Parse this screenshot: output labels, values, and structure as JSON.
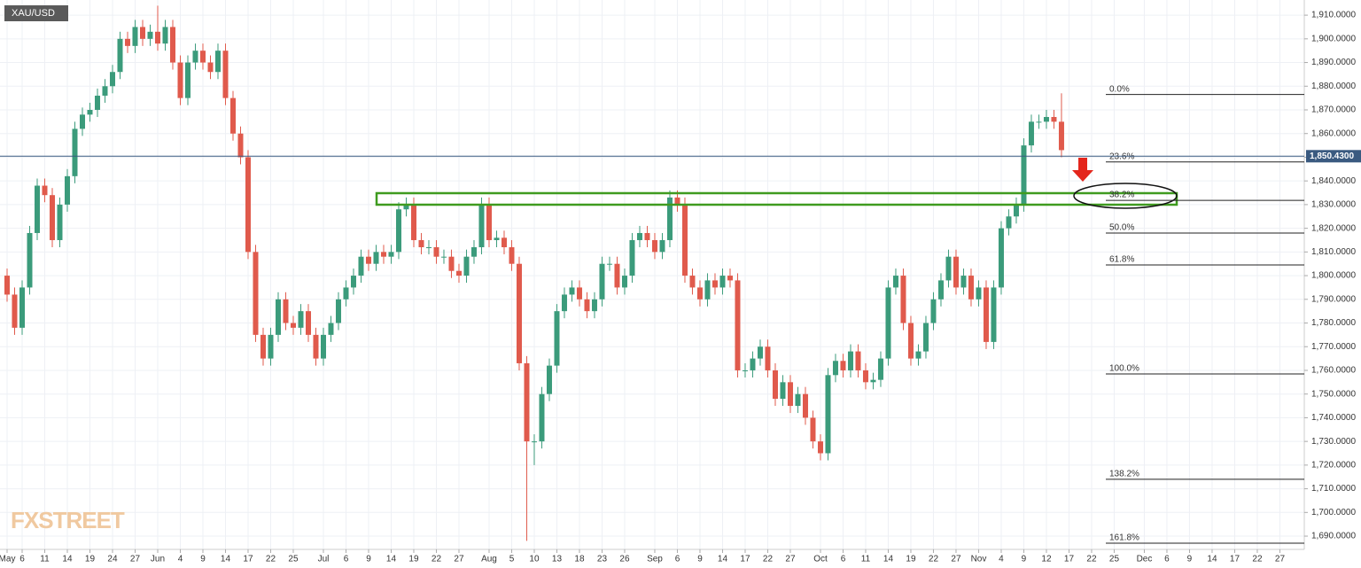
{
  "chart_data": {
    "type": "candlestick",
    "title": "XAU/USD",
    "watermark": "FXSTREET",
    "up_color": "#3b9b7b",
    "down_color": "#e05a4c",
    "grid": true,
    "ylim": [
      1684.4,
      1916.4
    ],
    "yticks": [
      {
        "value": 1690,
        "label": "1,690.0000"
      },
      {
        "value": 1700,
        "label": "1,700.0000"
      },
      {
        "value": 1710,
        "label": "1,710.0000"
      },
      {
        "value": 1720,
        "label": "1,720.0000"
      },
      {
        "value": 1730,
        "label": "1,730.0000"
      },
      {
        "value": 1740,
        "label": "1,740.0000"
      },
      {
        "value": 1750,
        "label": "1,750.0000"
      },
      {
        "value": 1760,
        "label": "1,760.0000"
      },
      {
        "value": 1770,
        "label": "1,770.0000"
      },
      {
        "value": 1780,
        "label": "1,780.0000"
      },
      {
        "value": 1790,
        "label": "1,790.0000"
      },
      {
        "value": 1800,
        "label": "1,800.0000"
      },
      {
        "value": 1810,
        "label": "1,810.0000"
      },
      {
        "value": 1820,
        "label": "1,820.0000"
      },
      {
        "value": 1830,
        "label": "1,830.0000"
      },
      {
        "value": 1840,
        "label": "1,840.0000"
      },
      {
        "value": 1850,
        "label": "1,850.0000"
      },
      {
        "value": 1860,
        "label": "1,860.0000"
      },
      {
        "value": 1870,
        "label": "1,870.0000"
      },
      {
        "value": 1880,
        "label": "1,880.0000"
      },
      {
        "value": 1890,
        "label": "1,890.0000"
      },
      {
        "value": 1900,
        "label": "1,900.0000"
      },
      {
        "value": 1910,
        "label": "1,910.0000"
      }
    ],
    "xlim": [
      -0.94,
      172.24
    ],
    "xticks": [
      {
        "value": 0,
        "label": "May"
      },
      {
        "value": 2,
        "label": "6"
      },
      {
        "value": 5,
        "label": "11"
      },
      {
        "value": 8,
        "label": "14"
      },
      {
        "value": 11,
        "label": "19"
      },
      {
        "value": 14,
        "label": "24"
      },
      {
        "value": 17,
        "label": "27"
      },
      {
        "value": 20,
        "label": "Jun"
      },
      {
        "value": 23,
        "label": "4"
      },
      {
        "value": 26,
        "label": "9"
      },
      {
        "value": 29,
        "label": "14"
      },
      {
        "value": 32,
        "label": "17"
      },
      {
        "value": 35,
        "label": "22"
      },
      {
        "value": 38,
        "label": "25"
      },
      {
        "value": 42,
        "label": "Jul"
      },
      {
        "value": 45,
        "label": "6"
      },
      {
        "value": 48,
        "label": "9"
      },
      {
        "value": 51,
        "label": "14"
      },
      {
        "value": 54,
        "label": "19"
      },
      {
        "value": 57,
        "label": "22"
      },
      {
        "value": 60,
        "label": "27"
      },
      {
        "value": 64,
        "label": "Aug"
      },
      {
        "value": 67,
        "label": "5"
      },
      {
        "value": 70,
        "label": "10"
      },
      {
        "value": 73,
        "label": "13"
      },
      {
        "value": 76,
        "label": "18"
      },
      {
        "value": 79,
        "label": "23"
      },
      {
        "value": 82,
        "label": "26"
      },
      {
        "value": 86,
        "label": "Sep"
      },
      {
        "value": 89,
        "label": "6"
      },
      {
        "value": 92,
        "label": "9"
      },
      {
        "value": 95,
        "label": "14"
      },
      {
        "value": 98,
        "label": "17"
      },
      {
        "value": 101,
        "label": "22"
      },
      {
        "value": 104,
        "label": "27"
      },
      {
        "value": 108,
        "label": "Oct"
      },
      {
        "value": 111,
        "label": "6"
      },
      {
        "value": 114,
        "label": "11"
      },
      {
        "value": 117,
        "label": "14"
      },
      {
        "value": 120,
        "label": "19"
      },
      {
        "value": 123,
        "label": "22"
      },
      {
        "value": 126,
        "label": "27"
      },
      {
        "value": 129,
        "label": "Nov"
      },
      {
        "value": 132,
        "label": "4"
      },
      {
        "value": 135,
        "label": "9"
      },
      {
        "value": 138,
        "label": "12"
      },
      {
        "value": 141,
        "label": "17"
      },
      {
        "value": 144,
        "label": "22"
      },
      {
        "value": 147,
        "label": "25"
      },
      {
        "value": 151,
        "label": "Dec"
      },
      {
        "value": 154,
        "label": "6"
      },
      {
        "value": 157,
        "label": "9"
      },
      {
        "value": 160,
        "label": "14"
      },
      {
        "value": 163,
        "label": "17"
      },
      {
        "value": 166,
        "label": "22"
      },
      {
        "value": 169,
        "label": "27"
      }
    ],
    "open": [
      1800,
      1792,
      1778,
      1795,
      1818,
      1838,
      1834,
      1815,
      1830,
      1842,
      1862,
      1868,
      1870,
      1876,
      1880,
      1886,
      1900,
      1897,
      1905,
      1900,
      1903,
      1898,
      1905,
      1890,
      1875,
      1890,
      1895,
      1890,
      1886,
      1895,
      1875,
      1860,
      1850,
      1810,
      1775,
      1765,
      1775,
      1790,
      1780,
      1778,
      1785,
      1775,
      1765,
      1775,
      1780,
      1790,
      1795,
      1800,
      1808,
      1805,
      1810,
      1808,
      1810,
      1828,
      1830,
      1815,
      1812,
      1812,
      1808,
      1808,
      1802,
      1800,
      1808,
      1812,
      1830,
      1815,
      1816,
      1812,
      1805,
      1763,
      1730,
      1730,
      1750,
      1762,
      1785,
      1792,
      1795,
      1790,
      1785,
      1790,
      1805,
      1805,
      1795,
      1800,
      1815,
      1818,
      1815,
      1810,
      1815,
      1833,
      1830,
      1800,
      1795,
      1790,
      1798,
      1795,
      1800,
      1798,
      1760,
      1760,
      1765,
      1770,
      1760,
      1748,
      1755,
      1745,
      1750,
      1740,
      1730,
      1725,
      1758,
      1764,
      1760,
      1768,
      1760,
      1755,
      1756,
      1765,
      1795,
      1800,
      1780,
      1765,
      1768,
      1780,
      1790,
      1798,
      1808,
      1795,
      1800,
      1790,
      1795,
      1772,
      1795,
      1820,
      1825,
      1830,
      1855,
      1865,
      1865,
      1867,
      1865
    ],
    "high": [
      1803,
      1795,
      1798,
      1821,
      1841,
      1841,
      1837,
      1833,
      1845,
      1865,
      1871,
      1873,
      1879,
      1883,
      1889,
      1903,
      1903,
      1908,
      1908,
      1906,
      1914,
      1908,
      1908,
      1893,
      1893,
      1898,
      1898,
      1893,
      1898,
      1898,
      1878,
      1863,
      1853,
      1813,
      1778,
      1778,
      1793,
      1793,
      1783,
      1788,
      1788,
      1778,
      1778,
      1783,
      1793,
      1798,
      1803,
      1811,
      1811,
      1813,
      1813,
      1813,
      1831,
      1833,
      1833,
      1818,
      1815,
      1815,
      1811,
      1811,
      1805,
      1811,
      1815,
      1833,
      1833,
      1819,
      1819,
      1815,
      1808,
      1766,
      1733,
      1753,
      1765,
      1788,
      1795,
      1798,
      1798,
      1793,
      1793,
      1808,
      1808,
      1808,
      1803,
      1818,
      1821,
      1821,
      1818,
      1818,
      1836,
      1836,
      1833,
      1803,
      1798,
      1801,
      1801,
      1803,
      1803,
      1801,
      1763,
      1768,
      1773,
      1773,
      1763,
      1758,
      1758,
      1753,
      1753,
      1743,
      1733,
      1761,
      1767,
      1767,
      1771,
      1771,
      1763,
      1759,
      1768,
      1798,
      1803,
      1803,
      1783,
      1771,
      1783,
      1793,
      1801,
      1811,
      1811,
      1803,
      1803,
      1798,
      1798,
      1798,
      1823,
      1828,
      1833,
      1858,
      1868,
      1868,
      1870,
      1870,
      1877
    ],
    "low": [
      1789,
      1775,
      1775,
      1792,
      1815,
      1831,
      1812,
      1812,
      1827,
      1839,
      1859,
      1865,
      1867,
      1873,
      1877,
      1883,
      1894,
      1894,
      1897,
      1897,
      1895,
      1895,
      1887,
      1872,
      1872,
      1887,
      1887,
      1883,
      1883,
      1872,
      1857,
      1847,
      1807,
      1772,
      1762,
      1762,
      1772,
      1777,
      1775,
      1775,
      1772,
      1762,
      1762,
      1772,
      1777,
      1787,
      1792,
      1797,
      1802,
      1802,
      1805,
      1805,
      1807,
      1825,
      1812,
      1809,
      1809,
      1805,
      1805,
      1799,
      1797,
      1797,
      1805,
      1809,
      1812,
      1812,
      1809,
      1802,
      1760,
      1688,
      1720,
      1727,
      1747,
      1759,
      1782,
      1789,
      1787,
      1782,
      1782,
      1787,
      1802,
      1792,
      1792,
      1797,
      1812,
      1812,
      1807,
      1807,
      1812,
      1827,
      1797,
      1792,
      1787,
      1787,
      1792,
      1792,
      1795,
      1757,
      1757,
      1757,
      1762,
      1757,
      1745,
      1745,
      1742,
      1742,
      1737,
      1727,
      1722,
      1722,
      1755,
      1757,
      1757,
      1757,
      1752,
      1752,
      1753,
      1762,
      1792,
      1777,
      1762,
      1762,
      1765,
      1777,
      1787,
      1795,
      1792,
      1792,
      1787,
      1787,
      1769,
      1769,
      1792,
      1817,
      1822,
      1827,
      1852,
      1862,
      1862,
      1862,
      1850
    ],
    "close": [
      1792,
      1778,
      1795,
      1818,
      1838,
      1834,
      1815,
      1830,
      1842,
      1862,
      1868,
      1870,
      1876,
      1880,
      1886,
      1900,
      1897,
      1905,
      1900,
      1903,
      1898,
      1905,
      1890,
      1875,
      1890,
      1895,
      1890,
      1886,
      1895,
      1875,
      1860,
      1850,
      1810,
      1775,
      1765,
      1775,
      1790,
      1780,
      1778,
      1785,
      1775,
      1765,
      1775,
      1780,
      1790,
      1795,
      1800,
      1808,
      1805,
      1810,
      1808,
      1810,
      1828,
      1830,
      1815,
      1812,
      1812,
      1808,
      1808,
      1802,
      1800,
      1808,
      1812,
      1830,
      1815,
      1816,
      1812,
      1805,
      1763,
      1730,
      1730,
      1750,
      1762,
      1785,
      1792,
      1795,
      1790,
      1785,
      1790,
      1805,
      1805,
      1795,
      1800,
      1815,
      1818,
      1815,
      1810,
      1815,
      1833,
      1830,
      1800,
      1795,
      1790,
      1798,
      1795,
      1800,
      1798,
      1760,
      1760,
      1765,
      1770,
      1760,
      1748,
      1755,
      1745,
      1750,
      1740,
      1730,
      1725,
      1758,
      1764,
      1760,
      1768,
      1760,
      1755,
      1756,
      1765,
      1795,
      1800,
      1780,
      1765,
      1768,
      1780,
      1790,
      1798,
      1808,
      1795,
      1800,
      1790,
      1795,
      1772,
      1795,
      1820,
      1825,
      1830,
      1855,
      1865,
      1865,
      1867,
      1865,
      1853
    ],
    "last_price": {
      "value": 1850.43,
      "label": "1,850.4300",
      "color": "#3a5a80"
    },
    "fib_levels": [
      {
        "label": "0.0%",
        "value": 1876.5
      },
      {
        "label": "23.6%",
        "value": 1848
      },
      {
        "label": "38.2%",
        "value": 1831.8
      },
      {
        "label": "50.0%",
        "value": 1818
      },
      {
        "label": "61.8%",
        "value": 1804.5
      },
      {
        "label": "100.0%",
        "value": 1758.5
      },
      {
        "label": "138.2%",
        "value": 1714
      },
      {
        "label": "161.8%",
        "value": 1687
      }
    ]
  }
}
